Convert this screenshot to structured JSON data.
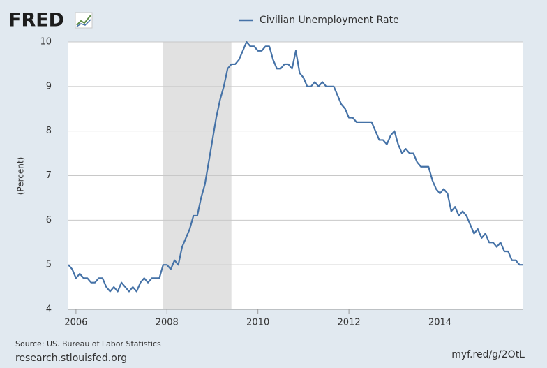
{
  "chart_data": {
    "type": "line",
    "logo": "FRED",
    "ylabel": "(Percent)",
    "source": "Source: US. Bureau of Labor Statistics",
    "source_site": "research.stlouisfed.org",
    "short_url": "myf.red/g/2OtL",
    "x": [
      2005.833,
      2005.917,
      2006.0,
      2006.083,
      2006.167,
      2006.25,
      2006.333,
      2006.417,
      2006.5,
      2006.583,
      2006.667,
      2006.75,
      2006.833,
      2006.917,
      2007.0,
      2007.083,
      2007.167,
      2007.25,
      2007.333,
      2007.417,
      2007.5,
      2007.583,
      2007.667,
      2007.75,
      2007.833,
      2007.917,
      2008.0,
      2008.083,
      2008.167,
      2008.25,
      2008.333,
      2008.417,
      2008.5,
      2008.583,
      2008.667,
      2008.75,
      2008.833,
      2008.917,
      2009.0,
      2009.083,
      2009.167,
      2009.25,
      2009.333,
      2009.417,
      2009.5,
      2009.583,
      2009.667,
      2009.75,
      2009.833,
      2009.917,
      2010.0,
      2010.083,
      2010.167,
      2010.25,
      2010.333,
      2010.417,
      2010.5,
      2010.583,
      2010.667,
      2010.75,
      2010.833,
      2010.917,
      2011.0,
      2011.083,
      2011.167,
      2011.25,
      2011.333,
      2011.417,
      2011.5,
      2011.583,
      2011.667,
      2011.75,
      2011.833,
      2011.917,
      2012.0,
      2012.083,
      2012.167,
      2012.25,
      2012.333,
      2012.417,
      2012.5,
      2012.583,
      2012.667,
      2012.75,
      2012.833,
      2012.917,
      2013.0,
      2013.083,
      2013.167,
      2013.25,
      2013.333,
      2013.417,
      2013.5,
      2013.583,
      2013.667,
      2013.75,
      2013.833,
      2013.917,
      2014.0,
      2014.083,
      2014.167,
      2014.25,
      2014.333,
      2014.417,
      2014.5,
      2014.583,
      2014.667,
      2014.75,
      2014.833,
      2014.917,
      2015.0,
      2015.083,
      2015.167,
      2015.25,
      2015.333,
      2015.417,
      2015.5,
      2015.583,
      2015.667,
      2015.75,
      2015.833
    ],
    "series": [
      {
        "name": "Civilian Unemployment Rate",
        "color": "#4572a7",
        "values": [
          5.0,
          4.9,
          4.7,
          4.8,
          4.7,
          4.7,
          4.6,
          4.6,
          4.7,
          4.7,
          4.5,
          4.4,
          4.5,
          4.4,
          4.6,
          4.5,
          4.4,
          4.5,
          4.4,
          4.6,
          4.7,
          4.6,
          4.7,
          4.7,
          4.7,
          5.0,
          5.0,
          4.9,
          5.1,
          5.0,
          5.4,
          5.6,
          5.8,
          6.1,
          6.1,
          6.5,
          6.8,
          7.3,
          7.8,
          8.3,
          8.7,
          9.0,
          9.4,
          9.5,
          9.5,
          9.6,
          9.8,
          10.0,
          9.9,
          9.9,
          9.8,
          9.8,
          9.9,
          9.9,
          9.6,
          9.4,
          9.4,
          9.5,
          9.5,
          9.4,
          9.8,
          9.3,
          9.2,
          9.0,
          9.0,
          9.1,
          9.0,
          9.1,
          9.0,
          9.0,
          9.0,
          8.8,
          8.6,
          8.5,
          8.3,
          8.3,
          8.2,
          8.2,
          8.2,
          8.2,
          8.2,
          8.0,
          7.8,
          7.8,
          7.7,
          7.9,
          8.0,
          7.7,
          7.5,
          7.6,
          7.5,
          7.5,
          7.3,
          7.2,
          7.2,
          7.2,
          6.9,
          6.7,
          6.6,
          6.7,
          6.6,
          6.2,
          6.3,
          6.1,
          6.2,
          6.1,
          5.9,
          5.7,
          5.8,
          5.6,
          5.7,
          5.5,
          5.5,
          5.4,
          5.5,
          5.3,
          5.3,
          5.1,
          5.1,
          5.0,
          5.0
        ]
      }
    ],
    "recession": [
      2007.917,
      2009.417
    ],
    "recession_color": "#e1e1e1",
    "xlim": [
      2005.833,
      2015.833
    ],
    "xticks": [
      2006,
      2008,
      2010,
      2012,
      2014
    ],
    "ylim": [
      4,
      10
    ],
    "yticks": [
      4,
      5,
      6,
      7,
      8,
      9,
      10
    ],
    "grid": true
  }
}
